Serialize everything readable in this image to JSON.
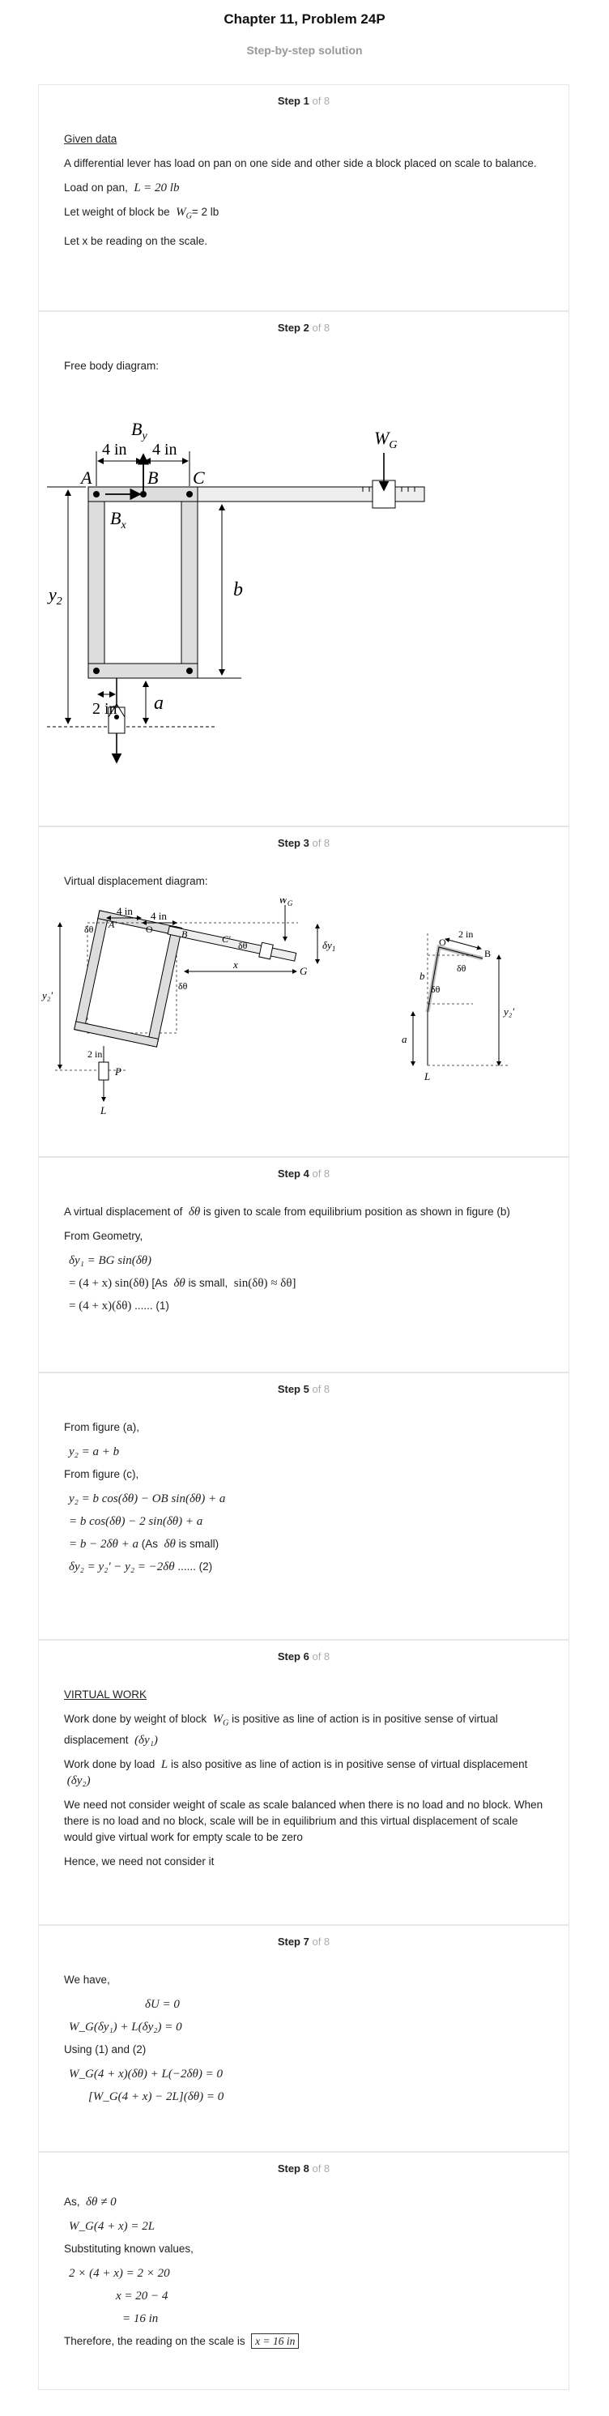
{
  "header": {
    "title": "Chapter 11, Problem 24P",
    "subtitle": "Step-by-step solution"
  },
  "of_label": "of 8",
  "steps": [
    {
      "num": "Step 1",
      "heading": "Given data",
      "t1": "A differential lever has load on pan on one side and other side a block placed on scale to balance.",
      "t2": "Load on pan,",
      "t2m": "L = 20 lb",
      "t3": "Let weight of block be",
      "t3m": "W",
      "t3s": "G",
      "t3v": "= 2 lb",
      "t4": "Let x be reading on the scale."
    },
    {
      "num": "Step 2",
      "text": "Free body diagram:",
      "labels": {
        "by": "B",
        "bys": "y",
        "wg": "W",
        "wgs": "G",
        "a": "A",
        "b": "B",
        "c": "C",
        "bx": "B",
        "bxs": "x",
        "d1": "4 in",
        "d2": "4 in",
        "y2": "y",
        "y2s": "2",
        "bb": "b",
        "d3": "2 in",
        "aa": "a"
      }
    },
    {
      "num": "Step 3",
      "text": "Virtual displacement diagram:",
      "labels": {
        "d1": "4 in",
        "d2": "4 in",
        "wg": "W",
        "wgs": "G",
        "dth": "δθ",
        "ap": "A'",
        "o": "O",
        "b": "B",
        "cp": "C'",
        "dy1": "δy",
        "dy1s": "1",
        "y2p": "y₂'",
        "x": "x",
        "g": "G",
        "d3": "2 in",
        "p": "P",
        "l": "L",
        "o2": "O",
        "b2": "B",
        "d4": "2 in",
        "bb": "b",
        "aa": "a",
        "y2p2": "y₂'",
        "l2": "L"
      }
    },
    {
      "num": "Step 4",
      "t1a": "A virtual displacement of",
      "t1m": "δθ",
      "t1b": "is given to scale from equilibrium position as shown in figure (b)",
      "t2": "From Geometry,",
      "e1": "δy₁ = BG sin(δθ)",
      "e2": "= (4 + x) sin(δθ)",
      "e2n": "[As",
      "e2m": "δθ",
      "e2n2": "is small,",
      "e2m2": "sin(δθ) ≈ δθ]",
      "e3": "= (4 + x)(δθ)",
      "e3n": "...... (1)"
    },
    {
      "num": "Step 5",
      "t1": "From figure (a),",
      "e1": "y₂ = a + b",
      "t2": "From figure (c),",
      "e2": "y₂ = b cos(δθ) − OB sin(δθ) + a",
      "e3": "= b cos(δθ) − 2 sin(δθ) + a",
      "e4": "= b − 2δθ + a",
      "e4n": "(As",
      "e4m": "δθ",
      "e4n2": "is small)",
      "e5": "δy₂ = y₂' − y₂ = −2δθ",
      "e5n": "...... (2)"
    },
    {
      "num": "Step 6",
      "heading": "VIRTUAL WORK",
      "t1a": "Work done by weight of block",
      "t1m": "W",
      "t1s": "G",
      "t1b": "is positive as line of action is in positive sense of virtual displacement",
      "t1c": "(δy₁)",
      "t2a": "Work done by load",
      "t2m": "L",
      "t2b": "is also positive as line of action is in positive sense of virtual displacement",
      "t2c": "(δy₂)",
      "t3": "We need not consider weight of scale as scale balanced when there is no load and no block. When there is no load and no block, scale will be in equilibrium and this virtual displacement of scale would give virtual work for empty scale to be zero",
      "t4": "Hence, we need not consider it"
    },
    {
      "num": "Step 7",
      "t1": "We have,",
      "e1": "δU = 0",
      "e2": "W_G(δy₁) + L(δy₂) = 0",
      "t2": "Using (1) and (2)",
      "e3": "W_G(4 + x)(δθ) + L(−2δθ) = 0",
      "e4": "[W_G(4 + x) − 2L](δθ) = 0"
    },
    {
      "num": "Step 8",
      "t1": "As,",
      "t1m": "δθ ≠ 0",
      "e1": "W_G(4 + x) = 2L",
      "t2": "Substituting known values,",
      "e2": "2 × (4 + x) = 2 × 20",
      "e3": "x = 20 − 4",
      "e4": "= 16 in",
      "t3": "Therefore, the reading on the scale is",
      "ans": "x = 16 in"
    }
  ]
}
